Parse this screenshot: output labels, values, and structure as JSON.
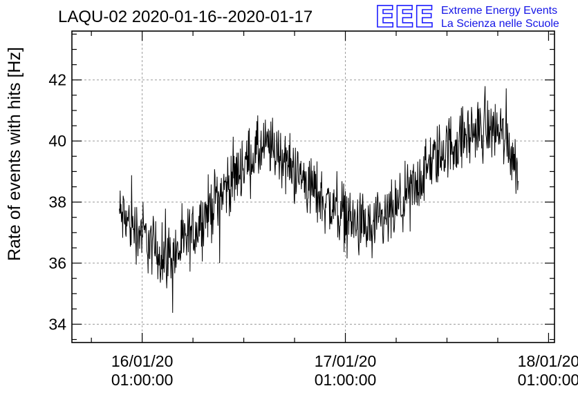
{
  "chart_data": {
    "type": "line",
    "title": "LAQU-02 2020-01-16--2020-01-17",
    "ylabel": "Rate of events with hits [Hz]",
    "xlabel": "",
    "ylim": [
      33.4,
      43.6
    ],
    "yticks": [
      34,
      36,
      38,
      40,
      42
    ],
    "ytick_labels": [
      "34",
      "36",
      "38",
      "40",
      "42"
    ],
    "xlim_hours": [
      -8.3,
      48.7
    ],
    "xticks_hours": [
      0,
      24,
      48
    ],
    "xtick_labels": [
      {
        "date": "16/01/20",
        "time": "01:00:00"
      },
      {
        "date": "17/01/20",
        "time": "01:00:00"
      },
      {
        "date": "18/01/20",
        "time": "01:00:00"
      }
    ],
    "grid": true,
    "series": [
      {
        "color": "#000000",
        "x_hours": [
          -2.7,
          -1.5,
          0.0,
          1.0,
          2.5,
          4.0,
          5.5,
          7.0,
          9.0,
          10.5,
          12.0,
          13.5,
          15.0,
          16.5,
          18.0,
          19.5,
          21.0,
          22.5,
          24.0,
          25.5,
          27.0,
          28.5,
          30.0,
          31.5,
          33.0,
          34.5,
          36.0,
          37.5,
          39.0,
          40.5,
          42.0,
          43.0,
          44.0,
          44.4
        ],
        "y_mean": [
          37.6,
          37.3,
          37.0,
          36.6,
          36.2,
          36.3,
          36.8,
          37.4,
          38.2,
          38.7,
          39.2,
          39.6,
          39.8,
          39.5,
          39.0,
          38.6,
          38.2,
          37.8,
          37.6,
          37.2,
          37.1,
          37.3,
          37.7,
          38.2,
          38.8,
          39.4,
          39.8,
          40.0,
          40.3,
          40.4,
          40.4,
          40.1,
          39.4,
          38.8
        ],
        "noise_amplitude_hz": 0.9,
        "sampling_interval_hours": 0.05
      }
    ]
  },
  "logo": {
    "letters": "EEE",
    "line1": "Extreme Energy Events",
    "line2": "La Scienza nelle Scuole",
    "color": "#1a1aff"
  }
}
